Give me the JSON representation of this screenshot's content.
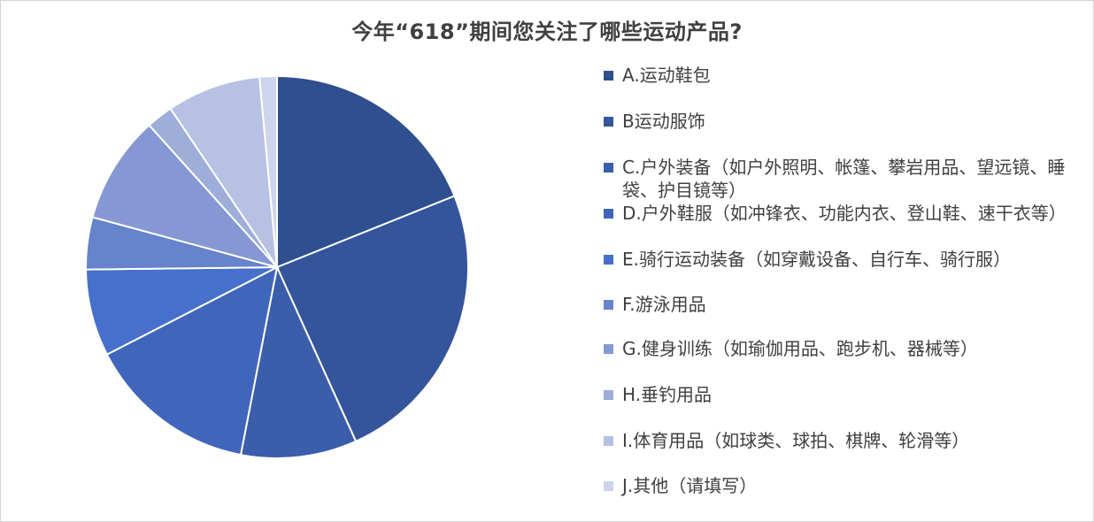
{
  "chart_data": {
    "type": "pie",
    "title": "今年“618”期间您关注了哪些运动产品?",
    "legend_position": "right",
    "slices": [
      {
        "label": "A.运动鞋包",
        "value": 19.3,
        "color": "#2f4f8f"
      },
      {
        "label": "B运动服饰",
        "value": 24.8,
        "color": "#34559c"
      },
      {
        "label": "C.户外装备（如户外照明、帐篷、攀岩用品、望远镜、睡袋、护目镜等）",
        "value": 10.0,
        "color": "#3a5eab"
      },
      {
        "label": "D.户外鞋服（如冲锋衣、功能内衣、登山鞋、速干衣等）",
        "value": 14.7,
        "color": "#4066bc"
      },
      {
        "label": "E.骑行运动装备（如穿戴设备、自行车、骑行服）",
        "value": 7.5,
        "color": "#4670cb"
      },
      {
        "label": "F.游泳用品",
        "value": 4.5,
        "color": "#6683cc"
      },
      {
        "label": "G.健身训练（如瑜伽用品、跑步机、器械等）",
        "value": 9.3,
        "color": "#8598d3"
      },
      {
        "label": "H.垂钓用品",
        "value": 2.3,
        "color": "#9eadda"
      },
      {
        "label": "I.体育用品（如球类、球拍、棋牌、轮滑等）",
        "value": 8.1,
        "color": "#b6c1e3"
      },
      {
        "label": "J.其他（请填写）",
        "value": 1.5,
        "color": "#cdd4ec"
      }
    ]
  }
}
